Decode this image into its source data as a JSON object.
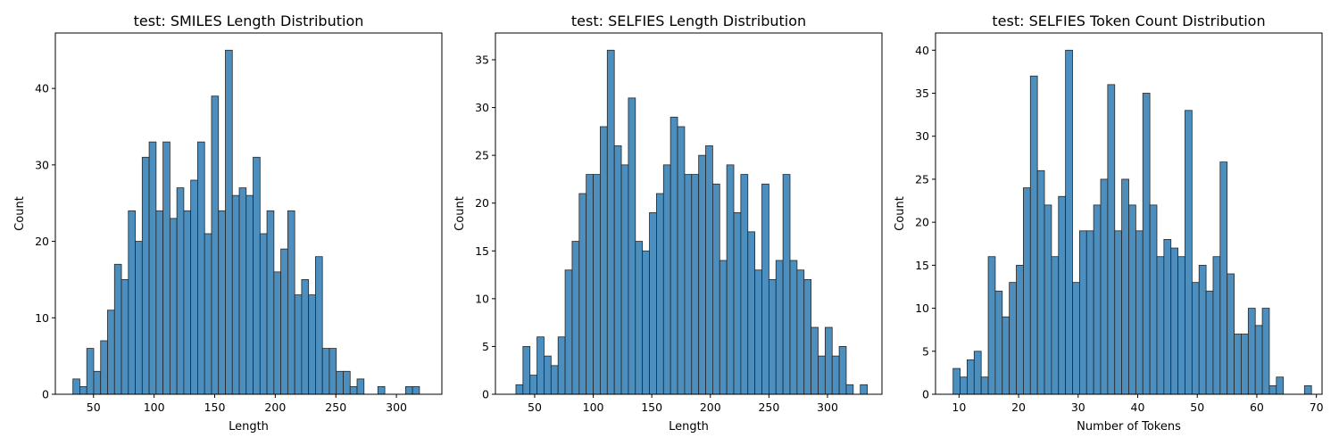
{
  "chart_data": [
    {
      "type": "bar",
      "title": "test: SMILES Length Distribution",
      "xlabel": "Length",
      "ylabel": "Count",
      "xlim": [
        18.5,
        337.5
      ],
      "ylim": [
        0,
        47.25
      ],
      "xticks": [
        50,
        100,
        150,
        200,
        250,
        300
      ],
      "yticks": [
        0,
        10,
        20,
        30,
        40
      ],
      "bin_start": 33,
      "bin_width": 5.72,
      "values": [
        2,
        1,
        6,
        3,
        7,
        11,
        17,
        15,
        24,
        20,
        31,
        33,
        24,
        33,
        23,
        27,
        24,
        28,
        33,
        21,
        39,
        24,
        45,
        26,
        27,
        26,
        31,
        21,
        24,
        16,
        19,
        24,
        13,
        15,
        13,
        18,
        6,
        6,
        3,
        3,
        1,
        2,
        0,
        0,
        1,
        0,
        0,
        0,
        1,
        1
      ]
    },
    {
      "type": "bar",
      "title": "test: SELFIES Length Distribution",
      "xlabel": "Length",
      "ylabel": "Count",
      "xlim": [
        16.5,
        346.5
      ],
      "ylim": [
        0,
        37.8
      ],
      "xticks": [
        50,
        100,
        150,
        200,
        250,
        300
      ],
      "yticks": [
        0,
        5,
        10,
        15,
        20,
        25,
        30,
        35
      ],
      "bin_start": 34,
      "bin_width": 6.0,
      "values": [
        1,
        5,
        2,
        6,
        4,
        3,
        6,
        13,
        16,
        21,
        23,
        23,
        28,
        36,
        26,
        24,
        31,
        16,
        15,
        19,
        21,
        24,
        29,
        28,
        23,
        23,
        25,
        26,
        22,
        14,
        24,
        19,
        23,
        17,
        13,
        22,
        12,
        14,
        23,
        14,
        13,
        12,
        7,
        4,
        7,
        4,
        5,
        1,
        0,
        1
      ]
    },
    {
      "type": "bar",
      "title": "test: SELFIES Token Count Distribution",
      "xlabel": "Number of Tokens",
      "ylabel": "Count",
      "xlim": [
        6.05,
        70.95
      ],
      "ylim": [
        0,
        42
      ],
      "xticks": [
        10,
        20,
        30,
        40,
        50,
        60,
        70
      ],
      "yticks": [
        0,
        5,
        10,
        15,
        20,
        25,
        30,
        35,
        40
      ],
      "bin_start": 9,
      "bin_width": 1.18,
      "values": [
        3,
        2,
        4,
        5,
        2,
        16,
        12,
        9,
        13,
        15,
        24,
        37,
        26,
        22,
        16,
        23,
        40,
        13,
        19,
        19,
        22,
        25,
        36,
        19,
        25,
        22,
        19,
        35,
        22,
        16,
        18,
        17,
        16,
        33,
        13,
        15,
        12,
        16,
        27,
        14,
        7,
        7,
        10,
        8,
        10,
        1,
        2,
        0,
        0,
        0,
        1
      ]
    }
  ]
}
